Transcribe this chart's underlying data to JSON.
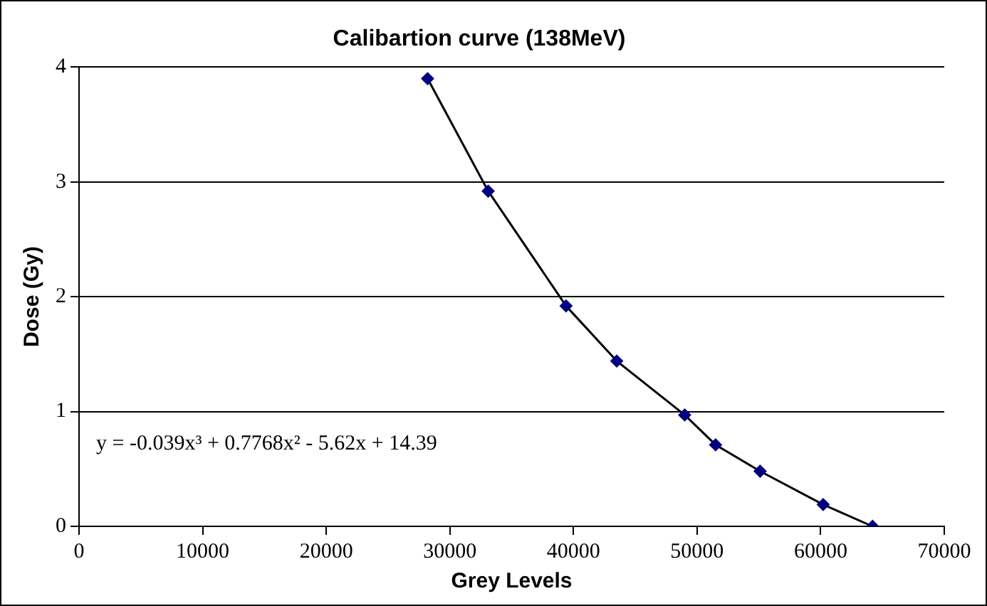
{
  "chart_data": {
    "type": "scatter",
    "title": "Calibartion curve (138MeV)",
    "xlabel": "Grey Levels",
    "ylabel": "Dose (Gy)",
    "x": [
      28200,
      33100,
      39400,
      43500,
      49000,
      51500,
      55100,
      60200,
      64200
    ],
    "series": [
      {
        "type": "scatter",
        "color": "#000080",
        "marker": "diamond",
        "values": [
          3.9,
          2.92,
          1.92,
          1.44,
          0.97,
          0.71,
          0.48,
          0.19,
          0
        ]
      },
      {
        "type": "line",
        "color": "#000000",
        "marker": "none",
        "line_style": "solid",
        "x": [
          28200,
          33100,
          39400,
          43500,
          49000,
          51500,
          55100,
          60200,
          64200
        ],
        "values": [
          3.9,
          2.92,
          1.92,
          1.44,
          0.97,
          0.71,
          0.48,
          0.19,
          0
        ]
      }
    ],
    "xlim": [
      0,
      70000
    ],
    "xticks": [
      0,
      10000,
      20000,
      30000,
      40000,
      50000,
      60000,
      70000
    ],
    "ylim": [
      0,
      4
    ],
    "yticks": [
      0,
      1,
      2,
      3,
      4
    ],
    "grid": "y",
    "legend": false,
    "annotations": [
      "y = -0.039x³ + 0.7768x² - 5.62x + 14.39"
    ]
  }
}
